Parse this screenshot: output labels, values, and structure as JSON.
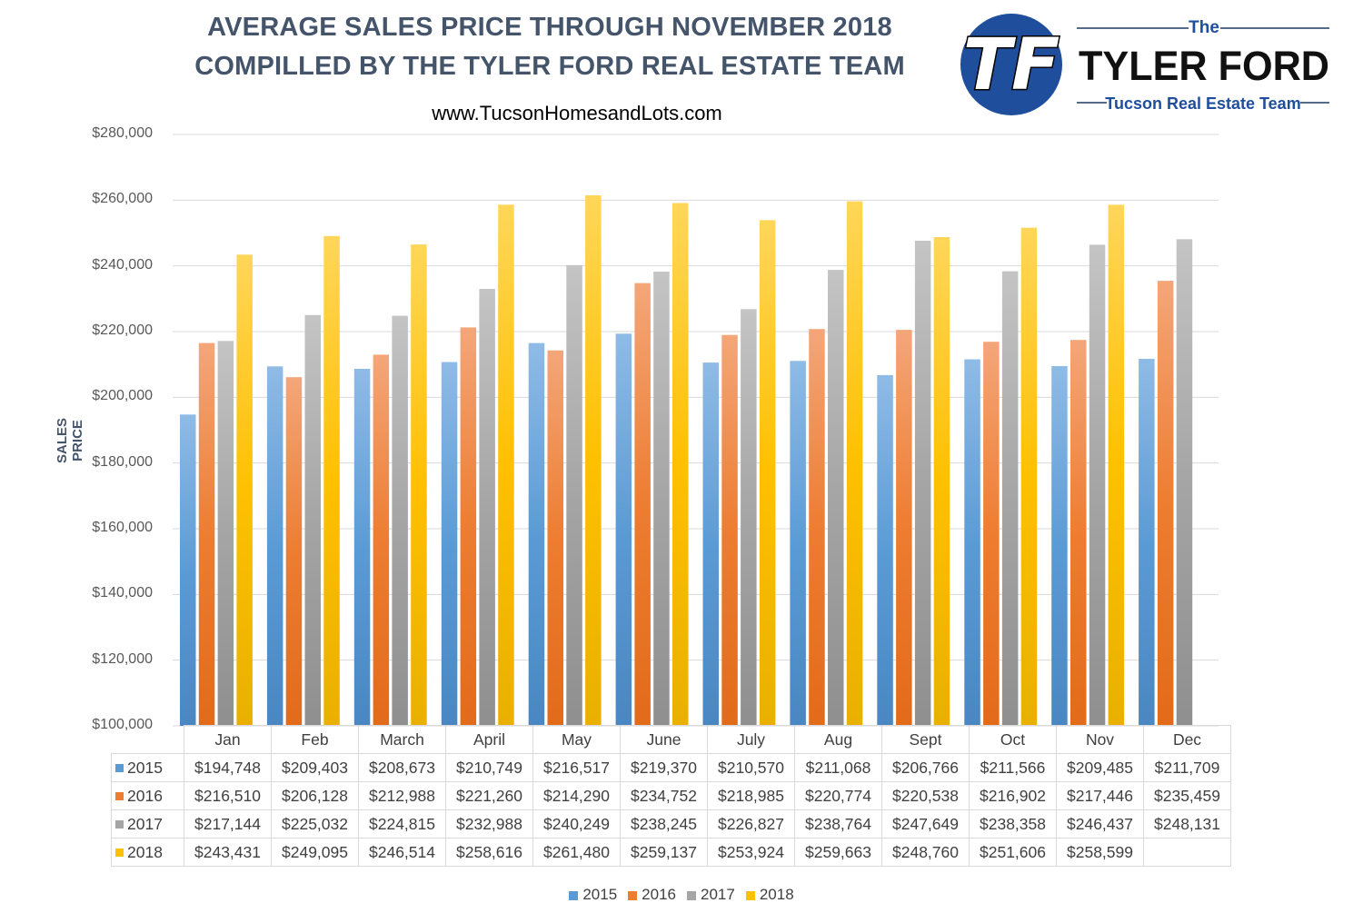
{
  "header": {
    "title_line1": "AVERAGE SALES PRICE THROUGH NOVEMBER 2018",
    "title_line2": "COMPILLED BY THE TYLER FORD REAL ESTATE TEAM",
    "website": "www.TucsonHomesandLots.com"
  },
  "logo": {
    "the": "The",
    "name": "TYLER FORD",
    "tagline": "Tucson Real Estate Team",
    "monogram": "TF",
    "circle_color": "#1f4e9c"
  },
  "chart_data": {
    "type": "bar",
    "title": "AVERAGE SALES PRICE THROUGH NOVEMBER 2018",
    "ylabel": "SALES PRICE",
    "xlabel": "",
    "ylim": [
      100000,
      280000
    ],
    "yticks": [
      "$100,000",
      "$120,000",
      "$140,000",
      "$160,000",
      "$180,000",
      "$200,000",
      "$220,000",
      "$240,000",
      "$260,000",
      "$280,000"
    ],
    "ytick_values": [
      100000,
      120000,
      140000,
      160000,
      180000,
      200000,
      220000,
      240000,
      260000,
      280000
    ],
    "grid": true,
    "legend_position": "bottom",
    "categories": [
      "Jan",
      "Feb",
      "March",
      "April",
      "May",
      "June",
      "July",
      "Aug",
      "Sept",
      "Oct",
      "Nov",
      "Dec"
    ],
    "series": [
      {
        "name": "2015",
        "color": "#5b9bd5",
        "values": [
          194748,
          209403,
          208673,
          210749,
          216517,
          219370,
          210570,
          211068,
          206766,
          211566,
          209485,
          211709
        ],
        "labels": [
          "$194,748",
          "$209,403",
          "$208,673",
          "$210,749",
          "$216,517",
          "$219,370",
          "$210,570",
          "$211,068",
          "$206,766",
          "$211,566",
          "$209,485",
          "$211,709"
        ]
      },
      {
        "name": "2016",
        "color": "#ed7d31",
        "values": [
          216510,
          206128,
          212988,
          221260,
          214290,
          234752,
          218985,
          220774,
          220538,
          216902,
          217446,
          235459
        ],
        "labels": [
          "$216,510",
          "$206,128",
          "$212,988",
          "$221,260",
          "$214,290",
          "$234,752",
          "$218,985",
          "$220,774",
          "$220,538",
          "$216,902",
          "$217,446",
          "$235,459"
        ]
      },
      {
        "name": "2017",
        "color": "#a5a5a5",
        "values": [
          217144,
          225032,
          224815,
          232988,
          240249,
          238245,
          226827,
          238764,
          247649,
          238358,
          246437,
          248131
        ],
        "labels": [
          "$217,144",
          "$225,032",
          "$224,815",
          "$232,988",
          "$240,249",
          "$238,245",
          "$226,827",
          "$238,764",
          "$247,649",
          "$238,358",
          "$246,437",
          "$248,131"
        ]
      },
      {
        "name": "2018",
        "color": "#ffc000",
        "values": [
          243431,
          249095,
          246514,
          258616,
          261480,
          259137,
          253924,
          259663,
          248760,
          251606,
          258599,
          null
        ],
        "labels": [
          "$243,431",
          "$249,095",
          "$246,514",
          "$258,616",
          "$261,480",
          "$259,137",
          "$253,924",
          "$259,663",
          "$248,760",
          "$251,606",
          "$258,599",
          ""
        ]
      }
    ]
  }
}
